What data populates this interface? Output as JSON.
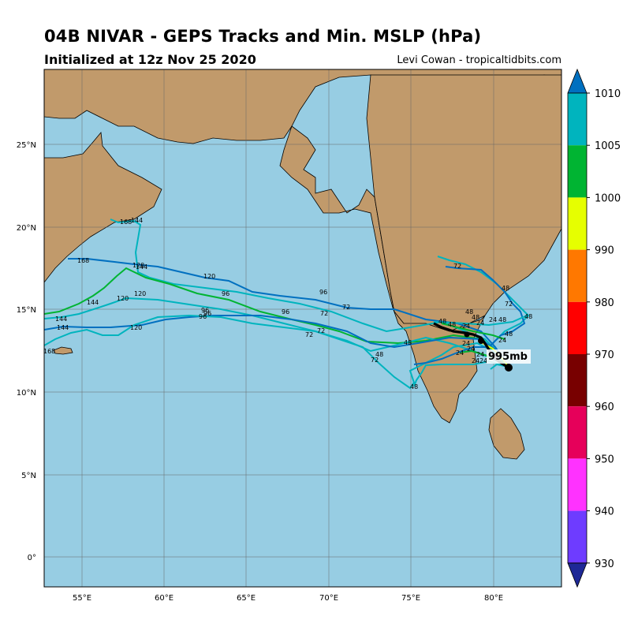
{
  "title": "04B NIVAR - GEPS Tracks and Min. MSLP (hPa)",
  "subtitle": "Initialized at 12z Nov 25 2020",
  "credit": "Levi Cowan - tropicaltidbits.com",
  "current_pressure_label": "995mb",
  "lon_ticks": [
    "55°E",
    "60°E",
    "65°E",
    "70°E",
    "75°E",
    "80°E"
  ],
  "lat_ticks": [
    "25°N",
    "20°N",
    "15°N",
    "10°N",
    "5°N",
    "0°"
  ],
  "colorbar": {
    "ticks": [
      "1010",
      "1005",
      "1000",
      "990",
      "980",
      "970",
      "960",
      "950",
      "940",
      "930"
    ],
    "colors": [
      "#00b4be",
      "#00b432",
      "#e6ff00",
      "#ff7800",
      "#ff0000",
      "#780000",
      "#e6005a",
      "#ff32ff",
      "#6e3cff"
    ],
    "extend_top_color": "#0070c0",
    "extend_bottom_color": "#1e2896"
  },
  "colors": {
    "ocean": "#97cde3",
    "land": "#c19a6b",
    "track_primary": "#00b4be",
    "track_secondary": "#0070c0",
    "track_green": "#00b432"
  },
  "track_hour_labels": [
    "24",
    "48",
    "72",
    "96",
    "120",
    "144",
    "168"
  ]
}
